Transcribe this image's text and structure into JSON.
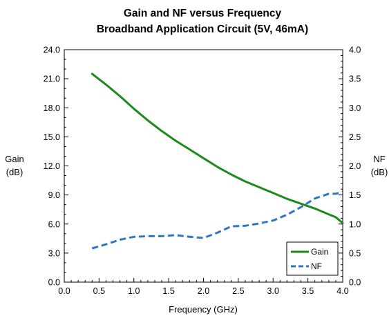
{
  "chart_data": {
    "type": "line",
    "title": "Gain and NF versus Frequency",
    "subtitle": "Broadband Application Circuit (5V, 46mA)",
    "xlabel": "Frequency (GHz)",
    "ylabel_left": [
      "Gain",
      "(dB)"
    ],
    "ylabel_right": [
      "NF",
      "(dB)"
    ],
    "xlim": [
      0.0,
      4.0
    ],
    "ylim_left": [
      0.0,
      24.0
    ],
    "ylim_right": [
      0.0,
      4.0
    ],
    "x_ticks": [
      "0.0",
      "0.5",
      "1.0",
      "1.5",
      "2.0",
      "2.5",
      "3.0",
      "3.5",
      "4.0"
    ],
    "y_left_ticks": [
      "0.0",
      "3.0",
      "6.0",
      "9.0",
      "12.0",
      "15.0",
      "18.0",
      "21.0",
      "24.0"
    ],
    "y_right_ticks": [
      "0.0",
      "0.5",
      "1.0",
      "1.5",
      "2.0",
      "2.5",
      "3.0",
      "3.5",
      "4.0"
    ],
    "grid": false,
    "legend_position": "bottom-right",
    "series": [
      {
        "name": "Gain",
        "axis": "left",
        "color": "#1a8a1a",
        "style": "solid",
        "x": [
          0.4,
          0.6,
          0.8,
          1.0,
          1.2,
          1.4,
          1.6,
          1.8,
          2.0,
          2.2,
          2.4,
          2.6,
          2.8,
          3.0,
          3.2,
          3.4,
          3.6,
          3.8,
          3.9,
          4.0
        ],
        "y": [
          21.5,
          20.4,
          19.2,
          17.9,
          16.7,
          15.6,
          14.6,
          13.7,
          12.8,
          11.9,
          11.1,
          10.4,
          9.8,
          9.2,
          8.6,
          8.1,
          7.6,
          7.0,
          6.7,
          6.1
        ]
      },
      {
        "name": "NF",
        "axis": "right",
        "color": "#2e74c7",
        "style": "dashed",
        "x": [
          0.4,
          0.6,
          0.8,
          1.0,
          1.2,
          1.4,
          1.6,
          1.8,
          2.0,
          2.2,
          2.4,
          2.6,
          2.8,
          3.0,
          3.2,
          3.4,
          3.6,
          3.8,
          3.9,
          4.0
        ],
        "y": [
          0.58,
          0.65,
          0.73,
          0.78,
          0.79,
          0.79,
          0.81,
          0.78,
          0.76,
          0.85,
          0.96,
          0.97,
          1.01,
          1.06,
          1.16,
          1.29,
          1.44,
          1.52,
          1.52,
          1.55
        ]
      }
    ]
  }
}
